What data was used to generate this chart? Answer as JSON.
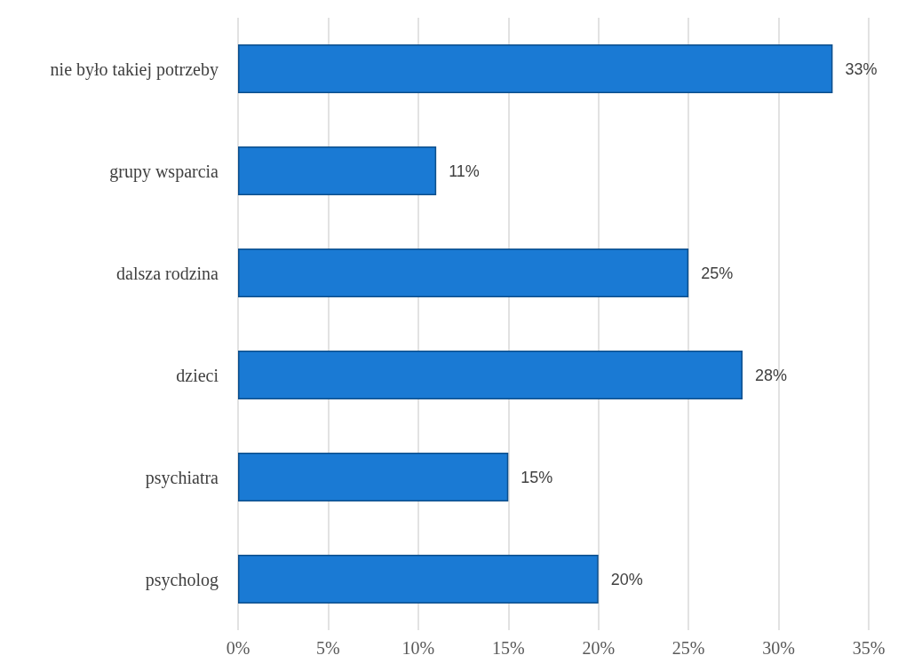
{
  "chart_data": {
    "type": "bar",
    "orientation": "horizontal",
    "categories": [
      "nie było takiej potrzeby",
      "grupy wsparcia",
      "dalsza rodzina",
      "dzieci",
      "psychiatra",
      "psycholog"
    ],
    "values": [
      33,
      11,
      25,
      28,
      15,
      20
    ],
    "value_labels": [
      "33%",
      "11%",
      "25%",
      "28%",
      "15%",
      "20%"
    ],
    "color": "#1a7ad4",
    "xlim": [
      0,
      35
    ],
    "xticks": [
      {
        "value": 0,
        "label": "0%"
      },
      {
        "value": 5,
        "label": "5%"
      },
      {
        "value": 10,
        "label": "10%"
      },
      {
        "value": 15,
        "label": "15%"
      },
      {
        "value": 20,
        "label": "20%"
      },
      {
        "value": 25,
        "label": "25%"
      },
      {
        "value": 30,
        "label": "30%"
      },
      {
        "value": 35,
        "label": "35%"
      }
    ],
    "grid": "x"
  }
}
